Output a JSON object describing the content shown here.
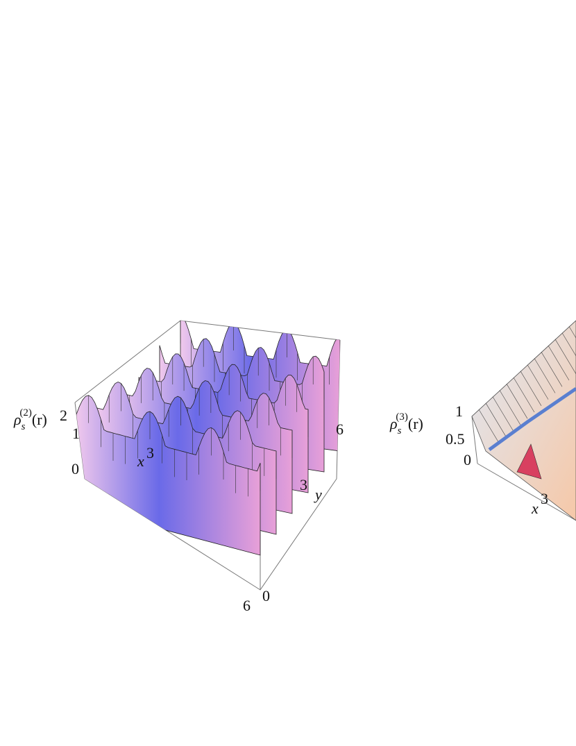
{
  "panels": [
    {
      "z_label": {
        "symbol": "ρ",
        "sub": "s",
        "sup": "(2)",
        "arg": "(r)"
      },
      "z_ticks": [
        "2",
        "1",
        "0"
      ],
      "x_label": "x",
      "x_ticks": [
        "3",
        "6"
      ],
      "y_label": "y",
      "y_ticks": [
        "0",
        "3",
        "6"
      ]
    },
    {
      "z_label": {
        "symbol": "ρ",
        "sub": "s",
        "sup": "(3)",
        "arg": "(r)"
      },
      "z_ticks": [
        "1",
        "0.5",
        "0"
      ],
      "x_label": "x",
      "x_ticks": [
        "3"
      ]
    }
  ]
}
